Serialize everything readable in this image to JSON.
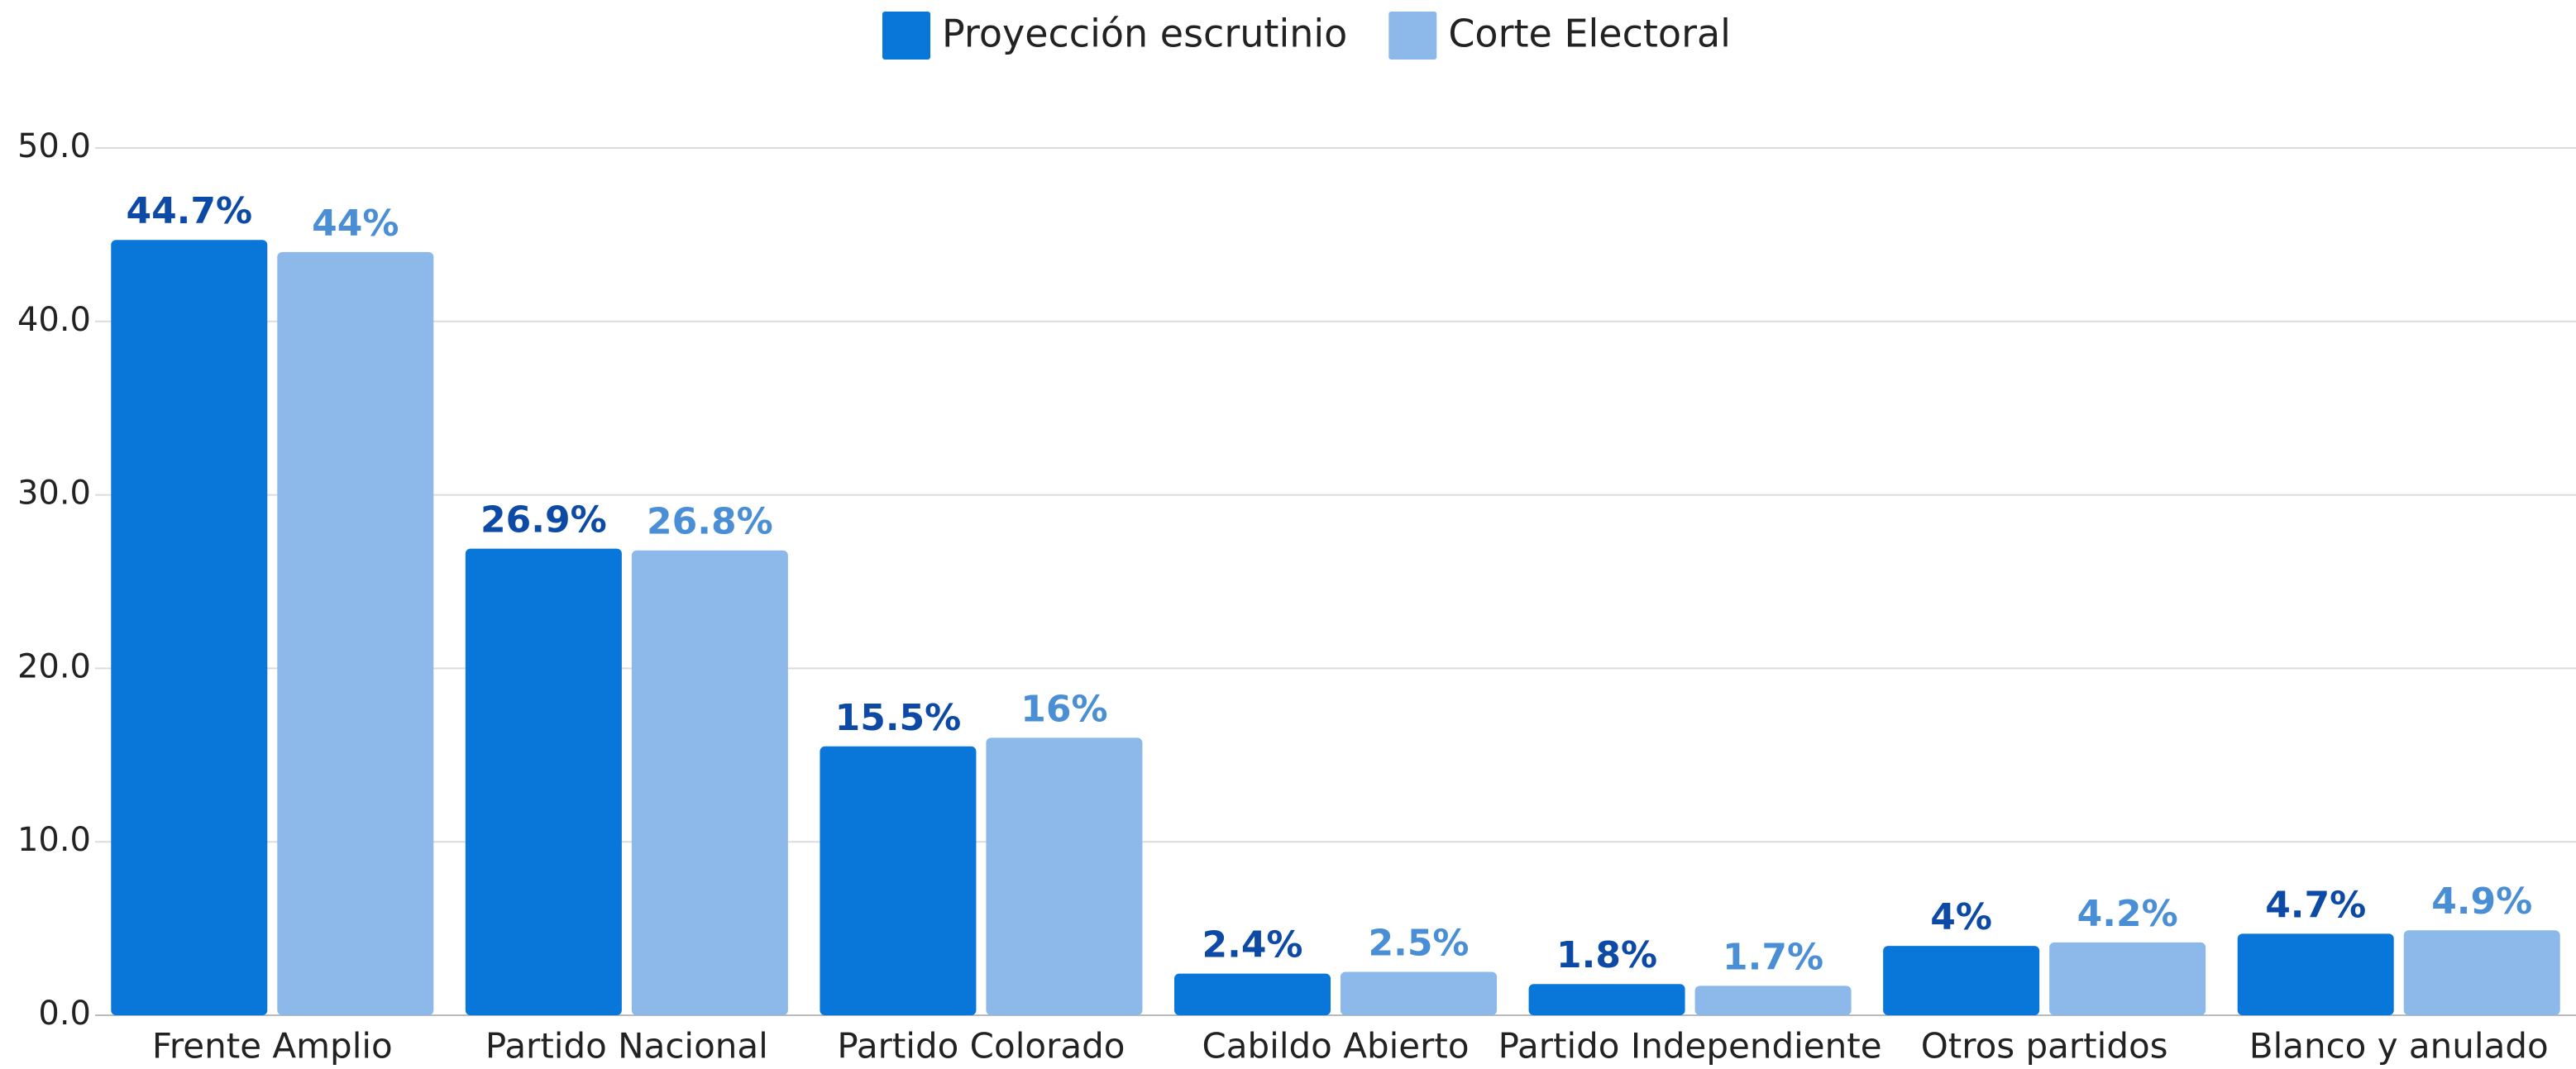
{
  "chart_data": {
    "type": "bar",
    "categories": [
      "Frente Amplio",
      "Partido Nacional",
      "Partido Colorado",
      "Cabildo Abierto",
      "Partido Independiente",
      "Otros partidos",
      "Blanco y anulado"
    ],
    "series": [
      {
        "name": "Proyección escrutinio",
        "color": "#0977d9",
        "label_color": "#0d4aa6",
        "values": [
          44.7,
          26.9,
          15.5,
          2.4,
          1.8,
          4,
          4.7
        ],
        "value_labels": [
          "44.7%",
          "26.9%",
          "15.5%",
          "2.4%",
          "1.8%",
          "4%",
          "4.7%"
        ]
      },
      {
        "name": "Corte Electoral",
        "color": "#8cb9e9",
        "label_color": "#4a8fd6",
        "values": [
          44,
          26.8,
          16,
          2.5,
          1.7,
          4.2,
          4.9
        ],
        "value_labels": [
          "44%",
          "26.8%",
          "16%",
          "2.5%",
          "1.7%",
          "4.2%",
          "4.9%"
        ]
      }
    ],
    "ylim": [
      0,
      50
    ],
    "yticks": [
      {
        "value": 0,
        "label": "0.0"
      },
      {
        "value": 10,
        "label": "10.0"
      },
      {
        "value": 20,
        "label": "20.0"
      },
      {
        "value": 30,
        "label": "30.0"
      },
      {
        "value": 40,
        "label": "40.0"
      },
      {
        "value": 50,
        "label": "50.0"
      }
    ],
    "grid": true,
    "legend": "top"
  }
}
